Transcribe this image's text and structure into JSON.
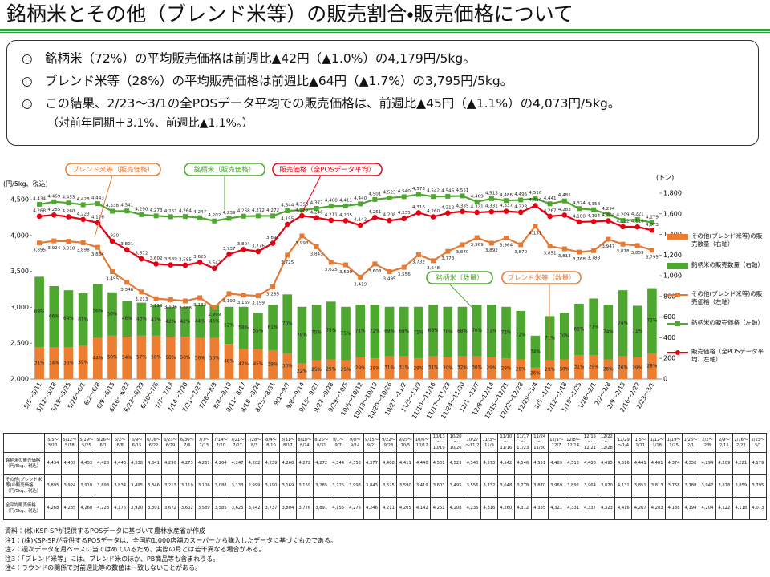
{
  "title": "銘柄米とその他（ブレンド米等）の販売割合・販売価格について",
  "bullets": [
    "○　銘柄米（72%）の平均販売価格は前週比▲42円（▲1.0%）の4,179円/5kg。",
    "○　ブレンド米等（28%）の平均販売価格は前週比▲64円（▲1.7%）の3,795円/5kg。",
    "○　この結果、2/23～3/1の全POSデータ平均での販売価格は、前週比▲45円（▲1.1%）の4,073円/5kg。",
    "（対前年同期＋3.1%、前週比▲1.1%。）"
  ],
  "chart_data": {
    "type": "combo",
    "ylabel": "(円/5kg、税込)",
    "y2label": "(トン)",
    "categories": [
      "5/5～5/11",
      "5/12～5/18",
      "5/19～5/25",
      "5/26～6/1",
      "6/2～6/8",
      "6/9～6/15",
      "6/16～6/22",
      "6/23～6/29",
      "6/30～7/6",
      "7/7～7/13",
      "7/14～7/20",
      "7/21～7/27",
      "7/28～8/3",
      "8/4～8/10",
      "8/11～8/17",
      "8/18～8/24",
      "8/25～8/31",
      "9/1～9/7",
      "9/8～9/14",
      "9/15～9/21",
      "9/22～9/28",
      "9/29～10/5",
      "10/6～10/12",
      "10/13～10/19",
      "10/20～10/26",
      "10/27～11/2",
      "11/3～11/9",
      "11/10～11/16",
      "11/17～11/23",
      "11/24～11/30",
      "12/1～12/7",
      "12/8～12/14",
      "12/15～12/21",
      "12/22～12/28",
      "12/29～1/4",
      "1/5～1/11",
      "1/12～1/18",
      "1/19～1/25",
      "1/26～2/1",
      "2/2～2/8",
      "2/9～2/15",
      "2/16～2/22",
      "2/23～3/1"
    ],
    "ylim": [
      2000,
      4500
    ],
    "yticks": [
      {
        "value": 2000,
        "label": "2,000"
      },
      {
        "value": 2500,
        "label": "2,500"
      },
      {
        "value": 3000,
        "label": "3,000"
      },
      {
        "value": 3500,
        "label": "3,500"
      },
      {
        "value": 4000,
        "label": "4,000"
      },
      {
        "value": 4500,
        "label": "4,500"
      }
    ],
    "y2lim": [
      0,
      1800
    ],
    "y2ticks": [
      0,
      200,
      400,
      600,
      800,
      {
        "value": 1000,
        "label": "1,000"
      },
      {
        "value": 1200,
        "label": "1,200"
      },
      {
        "value": 1400,
        "label": "1,400"
      },
      {
        "value": 1600,
        "label": "1,600"
      },
      {
        "value": 1800,
        "label": "1,800"
      }
    ],
    "series": [
      {
        "name": "その他(ブレンド米等)の販売数量（右軸）",
        "type": "bar",
        "axis": "y2",
        "color": "#ed7d31",
        "values": [
          310,
          310,
          310,
          320,
          400,
          420,
          410,
          420,
          420,
          410,
          410,
          400,
          400,
          340,
          290,
          290,
          280,
          250,
          150,
          180,
          190,
          180,
          210,
          200,
          220,
          220,
          200,
          220,
          210,
          220,
          220,
          210,
          200,
          190,
          110,
          180,
          190,
          230,
          230,
          190,
          220,
          210,
          250
        ],
        "share_labels": [
          "31%",
          "34%",
          "36%",
          "39%",
          "44%",
          "50%",
          "54%",
          "57%",
          "58%",
          "58%",
          "58%",
          "56%",
          "55%",
          "48%",
          "42%",
          "45%",
          "39%",
          "30%",
          "22%",
          "25%",
          "25%",
          "25%",
          "29%",
          "28%",
          "31%",
          "31%",
          "29%",
          "31%",
          "30%",
          "32%",
          "30%",
          "29%",
          "28%",
          "28%",
          "26%",
          "29%",
          "30%",
          "31%",
          "29%",
          "26%",
          "26%",
          "29%",
          "28%"
        ]
      },
      {
        "name": "銘柄米の販売数量（右軸）",
        "type": "bar",
        "axis": "y2",
        "color": "#4ea72e",
        "values": [
          680,
          590,
          550,
          510,
          520,
          420,
          350,
          320,
          300,
          290,
          290,
          320,
          320,
          360,
          410,
          350,
          440,
          570,
          550,
          540,
          560,
          520,
          510,
          520,
          480,
          480,
          500,
          500,
          490,
          480,
          500,
          510,
          500,
          470,
          310,
          430,
          450,
          500,
          550,
          530,
          640,
          500,
          630
        ],
        "share_labels": [
          "69%",
          "66%",
          "64%",
          "61%",
          "56%",
          "50%",
          "46%",
          "43%",
          "42%",
          "42%",
          "42%",
          "44%",
          "45%",
          "52%",
          "58%",
          "55%",
          "61%",
          "70%",
          "78%",
          "75%",
          "75%",
          "75%",
          "71%",
          "72%",
          "69%",
          "69%",
          "71%",
          "69%",
          "70%",
          "68%",
          "70%",
          "71%",
          "72%",
          "72%",
          "74%",
          "71%",
          "70%",
          "69%",
          "71%",
          "74%",
          "74%",
          "71%",
          "72%"
        ]
      },
      {
        "name": "その他(ブレンド米等)の販売価格（左軸）",
        "type": "line",
        "marker": "square",
        "color": "#e57a35",
        "values": [
          3895,
          3924,
          3918,
          3898,
          3834,
          3495,
          3346,
          3213,
          3119,
          3106,
          3088,
          3133,
          2999,
          3190,
          3169,
          3159,
          3285,
          3725,
          3993,
          3843,
          3625,
          3590,
          3419,
          3603,
          3495,
          3556,
          3732,
          3648,
          3778,
          3870,
          3969,
          3892,
          3964,
          3870,
          4131,
          3851,
          3813,
          3768,
          3788,
          3947,
          3878,
          3859,
          3795
        ],
        "value_labels": [
          "3,895",
          "3,924",
          "3,918",
          "3,898",
          "3,834",
          "3,495",
          "3,346",
          "3,213",
          "3,119",
          "3,106",
          "3,088",
          "3,133",
          "2,999",
          "3,190",
          "3,169",
          "3,159",
          "3,285",
          "3,725",
          "3,993",
          "3,843",
          "3,625",
          "3,590",
          "3,419",
          "3,603",
          "3,495",
          "3,556",
          "3,732",
          "3,648",
          "3,778",
          "3,870",
          "3,969",
          "3,892",
          "3,964",
          "3,870",
          "4,131",
          "3,851",
          "3,813",
          "3,768",
          "3,788",
          "3,947",
          "3,878",
          "3,859",
          "3,795"
        ]
      },
      {
        "name": "銘柄米の販売価格（左軸）",
        "type": "line",
        "marker": "square",
        "color": "#4ea72e",
        "values": [
          4434,
          4469,
          4453,
          4428,
          4443,
          4338,
          4341,
          4290,
          4273,
          4261,
          4264,
          4247,
          4202,
          4239,
          4268,
          4272,
          4272,
          4344,
          4353,
          4377,
          4408,
          4411,
          4440,
          4501,
          4523,
          4540,
          4573,
          4542,
          4546,
          4551,
          4469,
          4513,
          4486,
          4495,
          4516,
          4441,
          4481,
          4374,
          4358,
          4294,
          4209,
          4221,
          4179
        ],
        "value_labels": [
          "4,434",
          "4,469",
          "4,453",
          "4,428",
          "4,443",
          "4,338",
          "4,341",
          "4,290",
          "4,273",
          "4,261",
          "4,264",
          "4,247",
          "4,202",
          "4,239",
          "4,268",
          "4,272",
          "4,272",
          "4,344",
          "4,353",
          "4,377",
          "4,408",
          "4,411",
          "4,440",
          "4,501",
          "4,523",
          "4,540",
          "4,573",
          "4,542",
          "4,546",
          "4,551",
          "4,469",
          "4,513",
          "4,486",
          "4,495",
          "4,516",
          "4,441",
          "4,481",
          "4,374",
          "4,358",
          "4,294",
          "4,209",
          "4,221",
          "4,179"
        ]
      },
      {
        "name": "販売価格（全POSデータ平均、左軸）",
        "type": "line",
        "marker": "circle",
        "color": "#e60012",
        "values": [
          4268,
          4285,
          4260,
          4223,
          4176,
          3920,
          3801,
          3672,
          3602,
          3589,
          3585,
          3625,
          3542,
          3737,
          3804,
          3776,
          3891,
          4155,
          4275,
          4246,
          4211,
          4205,
          4142,
          4251,
          4208,
          4235,
          4316,
          4260,
          4312,
          4335,
          4321,
          4331,
          4337,
          4323,
          4416,
          4267,
          4283,
          4188,
          4194,
          4204,
          4122,
          4118,
          4073
        ],
        "value_labels": [
          "4,268",
          "4,285",
          "4,260",
          "4,223",
          "4,176",
          "3,920",
          "3,801",
          "3,672",
          "3,602",
          "3,589",
          "3,585",
          "3,625",
          "3,542",
          "3,737",
          "3,804",
          "3,776",
          "3,891",
          "4,155",
          "4,275",
          "4,246",
          "4,211",
          "4,205",
          "4,142",
          "4,251",
          "4,208",
          "4,235",
          "4,316",
          "4,260",
          "4,312",
          "4,335",
          "4,321",
          "4,331",
          "4,337",
          "4,323",
          "4,416",
          "4,267",
          "4,283",
          "4,188",
          "4,194",
          "4,204",
          "4,122",
          "4,118",
          "4,073"
        ]
      }
    ],
    "callouts": [
      "ブレンド米等（販売価格）",
      "銘柄米（販売価格）",
      "販売価格（全POSデータ平均）",
      "銘柄米（数量）",
      "ブレンド米等（数量）"
    ]
  },
  "table": {
    "row_labels": [
      "銘柄米の販売価格（円/5kg、税込）",
      "その他(ブレンド米等)の販売価格（円/5kg、税込）",
      "全平均販売価格（円/5kg、税込）"
    ]
  },
  "notes": [
    "資料：(株)KSP-SPが提供するPOSデータに基づいて農林水産省が作成",
    "注1：(株)KSP-SPが提供するPOSデータは、全国約1,000店舗のスーパーから購入したデータに基づくものである。",
    "注2：週次データを月ベースに当てはめているため、実際の月とは若干異なる場合がある。",
    "注3：「ブレンド米等」には、ブレンド米のほか、PB商品等も含まれうる。",
    "注4：ラウンドの関係で対前週比等の数値は一致しないことがある。"
  ]
}
